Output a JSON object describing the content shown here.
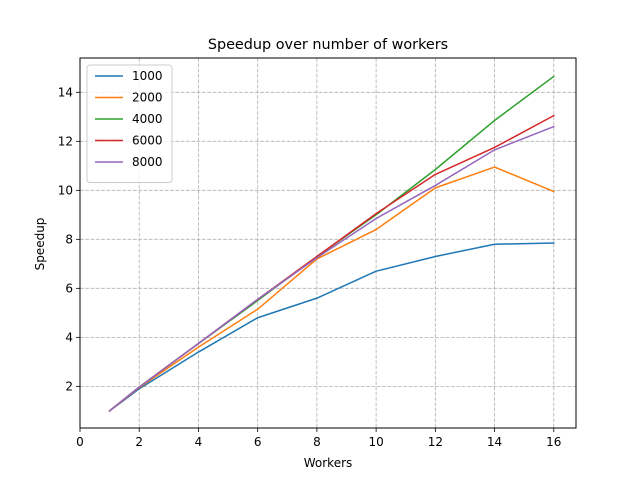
{
  "chart_data": {
    "type": "line",
    "title": "Speedup over number of workers",
    "xlabel": "Workers",
    "ylabel": "Speedup",
    "xlim": [
      0,
      16.75
    ],
    "ylim": [
      0.3,
      15.4
    ],
    "xticks": [
      0,
      2,
      4,
      6,
      8,
      10,
      12,
      14,
      16
    ],
    "yticks": [
      2,
      4,
      6,
      8,
      10,
      12,
      14
    ],
    "grid": true,
    "grid_style": "dashed",
    "legend_position": "upper-left",
    "x": [
      1,
      2,
      4,
      6,
      8,
      10,
      12,
      14,
      16
    ],
    "series": [
      {
        "name": "1000",
        "color": "#1f77b4",
        "values": [
          1.0,
          1.9,
          3.4,
          4.8,
          5.6,
          6.7,
          7.3,
          7.8,
          7.85
        ]
      },
      {
        "name": "2000",
        "color": "#ff7f0e",
        "values": [
          1.0,
          1.95,
          3.6,
          5.15,
          7.2,
          8.4,
          10.1,
          10.95,
          9.95
        ]
      },
      {
        "name": "4000",
        "color": "#2ca02c",
        "values": [
          1.0,
          1.97,
          3.75,
          5.5,
          7.3,
          9.0,
          10.85,
          12.85,
          14.65
        ]
      },
      {
        "name": "6000",
        "color": "#d62728",
        "values": [
          1.0,
          1.97,
          3.75,
          5.55,
          7.3,
          9.05,
          10.65,
          11.75,
          13.05
        ]
      },
      {
        "name": "8000",
        "color": "#9467bd",
        "values": [
          1.0,
          1.97,
          3.75,
          5.55,
          7.25,
          8.85,
          10.2,
          11.65,
          12.6
        ]
      }
    ]
  }
}
